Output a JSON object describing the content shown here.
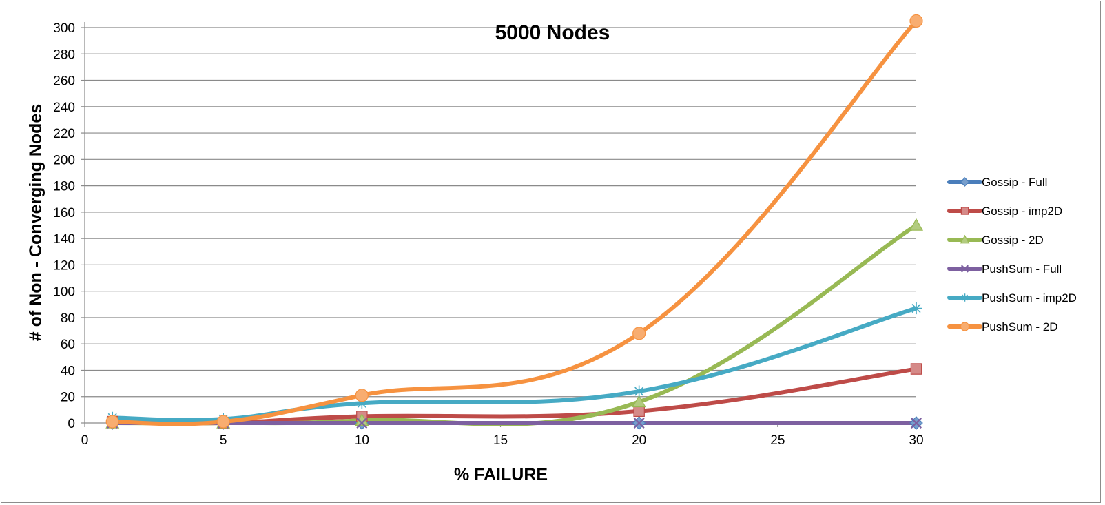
{
  "chart_data": {
    "type": "line",
    "title": "5000 Nodes",
    "xlabel": "% FAILURE",
    "ylabel": "# of Non - Converging Nodes",
    "xlim": [
      0,
      30
    ],
    "ylim": [
      0,
      300
    ],
    "xticks": [
      0,
      5,
      10,
      15,
      20,
      25,
      30
    ],
    "yticks": [
      0,
      20,
      40,
      60,
      80,
      100,
      120,
      140,
      160,
      180,
      200,
      220,
      240,
      260,
      280,
      300
    ],
    "grid": true,
    "smooth": true,
    "legend_position": "right",
    "x": [
      1,
      5,
      10,
      20,
      30
    ],
    "series": [
      {
        "name": "Gossip - Full",
        "values": [
          0,
          0,
          0,
          0,
          0
        ],
        "color": "#4a7ebb",
        "marker": "diamond"
      },
      {
        "name": "Gossip - imp2D",
        "values": [
          1,
          0,
          5,
          9,
          41
        ],
        "color": "#be4b48",
        "marker": "square"
      },
      {
        "name": "Gossip - 2D",
        "values": [
          0,
          0,
          2,
          16,
          150
        ],
        "color": "#98b954",
        "marker": "triangle"
      },
      {
        "name": "PushSum - Full",
        "values": [
          0,
          0,
          0,
          0,
          0
        ],
        "color": "#7d60a0",
        "marker": "x"
      },
      {
        "name": "PushSum - imp2D",
        "values": [
          4,
          3,
          15,
          24,
          87
        ],
        "color": "#46aac4",
        "marker": "star"
      },
      {
        "name": "PushSum - 2D",
        "values": [
          1,
          1,
          21,
          68,
          305
        ],
        "color": "#f69240",
        "marker": "circle"
      }
    ]
  }
}
